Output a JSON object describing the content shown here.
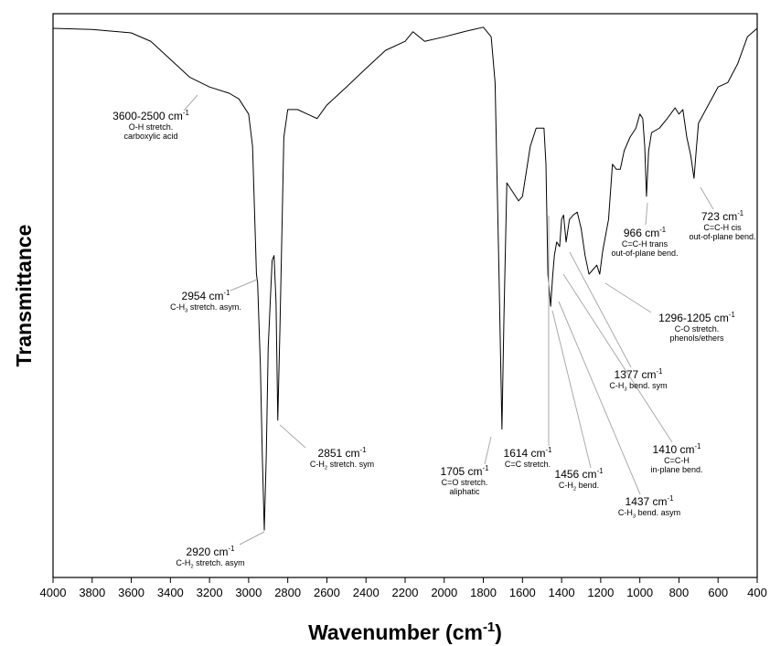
{
  "chart_data": {
    "type": "line",
    "x_label": [
      {
        "text": "Wavenumber (cm"
      },
      {
        "text": "-1",
        "shift": "sup"
      },
      {
        "text": ")"
      }
    ],
    "y_label": "Transmittance",
    "xlim": [
      4000,
      400
    ],
    "ylim": [
      0,
      100
    ],
    "xticks": [
      4000,
      3800,
      3600,
      3400,
      3200,
      3000,
      2800,
      2600,
      2400,
      2200,
      2000,
      1800,
      1600,
      1400,
      1200,
      1000,
      800,
      600,
      400
    ],
    "color": "#000000",
    "x": [
      4000,
      3800,
      3600,
      3500,
      3400,
      3300,
      3200,
      3100,
      3050,
      3000,
      2980,
      2960,
      2954,
      2940,
      2930,
      2920,
      2910,
      2900,
      2880,
      2870,
      2860,
      2851,
      2840,
      2820,
      2800,
      2750,
      2700,
      2650,
      2600,
      2500,
      2400,
      2300,
      2200,
      2160,
      2100,
      2000,
      1900,
      1850,
      1800,
      1760,
      1740,
      1720,
      1705,
      1695,
      1680,
      1650,
      1620,
      1600,
      1560,
      1530,
      1510,
      1490,
      1480,
      1470,
      1456,
      1445,
      1437,
      1425,
      1410,
      1400,
      1390,
      1377,
      1360,
      1340,
      1320,
      1300,
      1280,
      1260,
      1240,
      1220,
      1205,
      1190,
      1160,
      1140,
      1120,
      1100,
      1080,
      1050,
      1020,
      1000,
      985,
      975,
      966,
      955,
      940,
      900,
      860,
      820,
      800,
      780,
      760,
      740,
      723,
      710,
      700,
      650,
      600,
      550,
      500,
      450,
      400
    ],
    "values": [
      97.4,
      97.2,
      96.6,
      95.1,
      91.9,
      88.7,
      87.0,
      85.9,
      84.9,
      82.2,
      76.5,
      53.8,
      52.2,
      37.6,
      21.4,
      8.4,
      21.4,
      40.8,
      56.2,
      57.1,
      48.9,
      27.9,
      44.1,
      78.1,
      83.0,
      83.0,
      82.2,
      81.4,
      83.8,
      87.0,
      90.3,
      93.5,
      95.1,
      96.8,
      95.1,
      95.9,
      96.8,
      97.2,
      97.6,
      95.9,
      87.8,
      53.8,
      26.3,
      45.7,
      70.0,
      68.4,
      66.8,
      67.6,
      76.5,
      79.7,
      79.7,
      79.7,
      73.3,
      53.8,
      48.1,
      53.8,
      57.1,
      59.5,
      58.7,
      63.5,
      64.3,
      59.5,
      63.5,
      64.3,
      64.8,
      61.9,
      57.1,
      53.8,
      54.6,
      55.4,
      53.8,
      57.9,
      63.5,
      73.3,
      72.4,
      72.4,
      75.7,
      78.1,
      79.7,
      82.2,
      81.4,
      76.5,
      67.6,
      75.7,
      78.9,
      79.7,
      81.4,
      83.3,
      82.2,
      83.0,
      78.1,
      74.9,
      70.8,
      76.5,
      80.6,
      83.8,
      87.0,
      87.8,
      91.1,
      95.9,
      97.4
    ],
    "annotations": [
      {
        "label": [
          {
            "text": "3600-2500 cm"
          },
          {
            "text": "-1",
            "shift": "sup"
          }
        ],
        "lines": [
          [
            {
              "text": "O-H stretch."
            }
          ],
          [
            {
              "text": "carboxylic acid"
            }
          ]
        ]
      },
      {
        "label": [
          {
            "text": "2954 cm"
          },
          {
            "text": "-1",
            "shift": "sup"
          }
        ],
        "lines": [
          [
            {
              "text": "C-H"
            },
            {
              "text": "3",
              "shift": "sub"
            },
            {
              "text": " stretch. asym."
            }
          ]
        ]
      },
      {
        "label": [
          {
            "text": "2851 cm"
          },
          {
            "text": "-1",
            "shift": "sup"
          }
        ],
        "lines": [
          [
            {
              "text": "C-H"
            },
            {
              "text": "2",
              "shift": "sub"
            },
            {
              "text": " stretch. sym"
            }
          ]
        ]
      },
      {
        "label": [
          {
            "text": "2920 cm"
          },
          {
            "text": "-1",
            "shift": "sup"
          }
        ],
        "lines": [
          [
            {
              "text": "C-H"
            },
            {
              "text": "2",
              "shift": "sub"
            },
            {
              "text": " stretch. asym"
            }
          ]
        ]
      },
      {
        "label": [
          {
            "text": "1705 cm"
          },
          {
            "text": "-1",
            "shift": "sup"
          }
        ],
        "lines": [
          [
            {
              "text": "C=O stretch."
            }
          ],
          [
            {
              "text": "aliphatic"
            }
          ]
        ]
      },
      {
        "label": [
          {
            "text": "1614 cm"
          },
          {
            "text": "-1",
            "shift": "sup"
          }
        ],
        "lines": [
          [
            {
              "text": "C=C stretch."
            }
          ]
        ]
      },
      {
        "label": [
          {
            "text": "1456 cm"
          },
          {
            "text": "-1",
            "shift": "sup"
          }
        ],
        "lines": [
          [
            {
              "text": "C-H"
            },
            {
              "text": "2",
              "shift": "sub"
            },
            {
              "text": " bend."
            }
          ]
        ]
      },
      {
        "label": [
          {
            "text": "1437 cm"
          },
          {
            "text": "-1",
            "shift": "sup"
          }
        ],
        "lines": [
          [
            {
              "text": "C-H"
            },
            {
              "text": "3",
              "shift": "sub"
            },
            {
              "text": " bend. asym"
            }
          ]
        ]
      },
      {
        "label": [
          {
            "text": "1410 cm"
          },
          {
            "text": "-1",
            "shift": "sup"
          }
        ],
        "lines": [
          [
            {
              "text": "C=C-H"
            }
          ],
          [
            {
              "text": "in-plane bend."
            }
          ]
        ]
      },
      {
        "label": [
          {
            "text": "1377 cm"
          },
          {
            "text": "-1",
            "shift": "sup"
          }
        ],
        "lines": [
          [
            {
              "text": "C-H"
            },
            {
              "text": "3",
              "shift": "sub"
            },
            {
              "text": " bend. sym"
            }
          ]
        ]
      },
      {
        "label": [
          {
            "text": "1296-1205 cm"
          },
          {
            "text": "-1",
            "shift": "sup"
          }
        ],
        "lines": [
          [
            {
              "text": "C-O stretch."
            }
          ],
          [
            {
              "text": "phenols/ethers"
            }
          ]
        ]
      },
      {
        "label": [
          {
            "text": "966 cm"
          },
          {
            "text": "-1",
            "shift": "sup"
          }
        ],
        "lines": [
          [
            {
              "text": "C=C-H trans"
            }
          ],
          [
            {
              "text": "out-of-plane bend."
            }
          ]
        ]
      },
      {
        "label": [
          {
            "text": "723 cm"
          },
          {
            "text": "-1",
            "shift": "sup"
          }
        ],
        "lines": [
          [
            {
              "text": "C=C-H cis"
            }
          ],
          [
            {
              "text": "out-of-plane bend."
            }
          ]
        ]
      }
    ]
  }
}
